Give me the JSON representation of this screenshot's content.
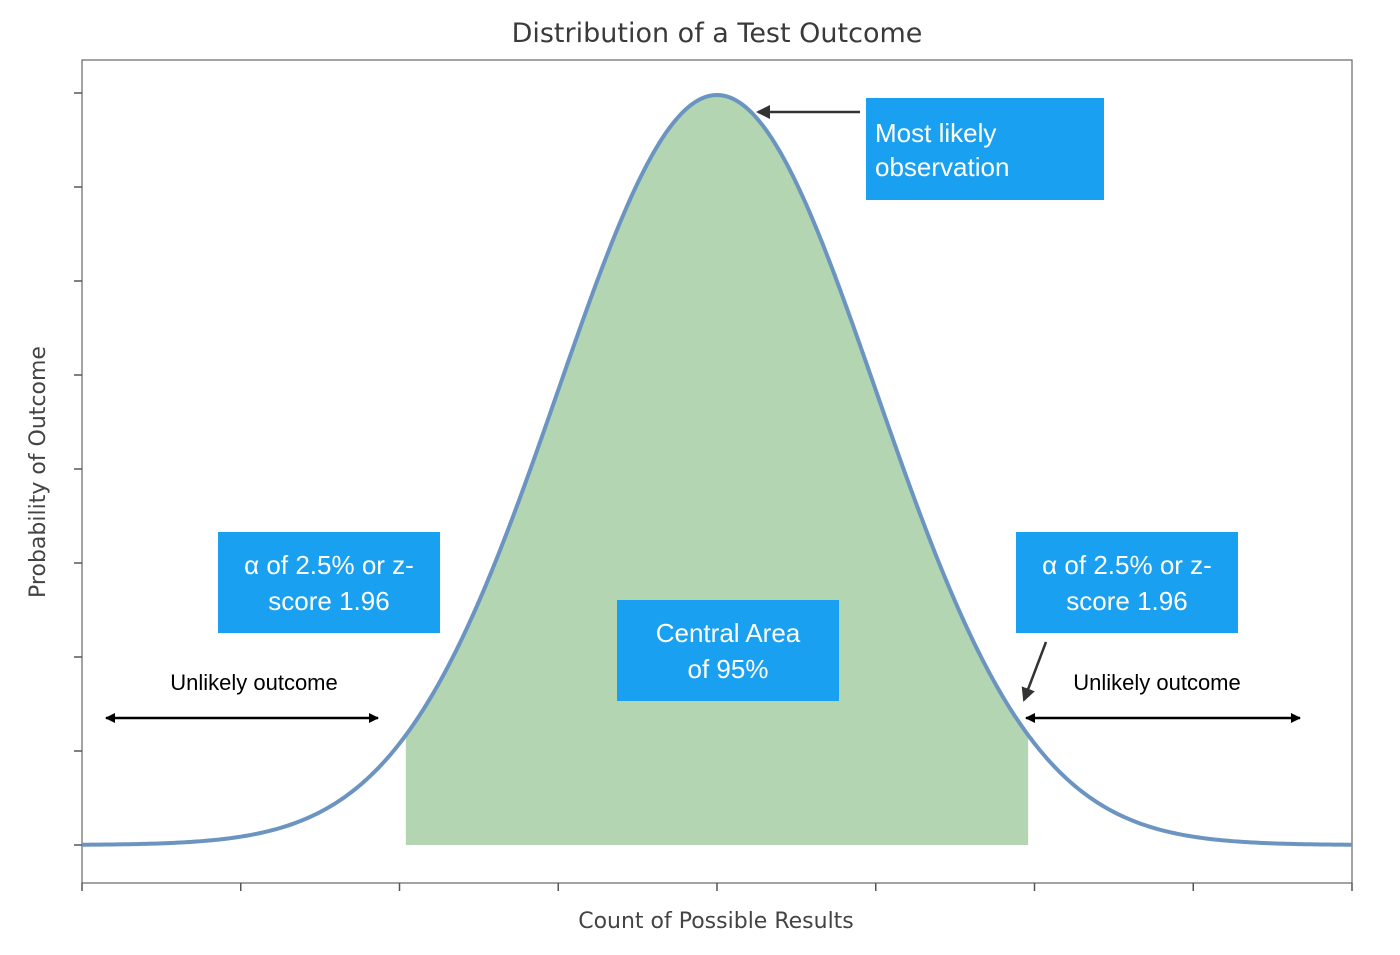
{
  "chart_data": {
    "type": "area",
    "title": "Distribution of a Test Outcome",
    "xlabel": "Count of Possible Results",
    "ylabel": "Probability of Outcome",
    "distribution": "normal",
    "mean": 0,
    "sd": 1,
    "xlim": [
      -4,
      4
    ],
    "shaded_interval": [
      -1.96,
      1.96
    ],
    "curve_color": "#6b95c0",
    "fill_color": "#b3d5b2",
    "box_color": "#1aa0f0",
    "grid": false,
    "annotations": {
      "peak": "Most likely observation",
      "left_alpha": "α of 2.5% or z-score 1.96",
      "right_alpha": "α of 2.5% or z-score 1.96",
      "central": "Central Area of 95%",
      "left_tail": "Unlikely outcome",
      "right_tail": "Unlikely outcome"
    }
  },
  "text": {
    "title": "Distribution of a Test Outcome",
    "xlabel": "Count of Possible Results",
    "ylabel": "Probability of Outcome",
    "peak_l1": "Most likely",
    "peak_l2": "observation",
    "left_alpha_l1": "α of 2.5% or z-",
    "left_alpha_l2": "score 1.96",
    "right_alpha_l1": "α of 2.5% or z-",
    "right_alpha_l2": "score 1.96",
    "central_l1": "Central Area",
    "central_l2": "of 95%",
    "left_tail": "Unlikely outcome",
    "right_tail": "Unlikely outcome"
  }
}
